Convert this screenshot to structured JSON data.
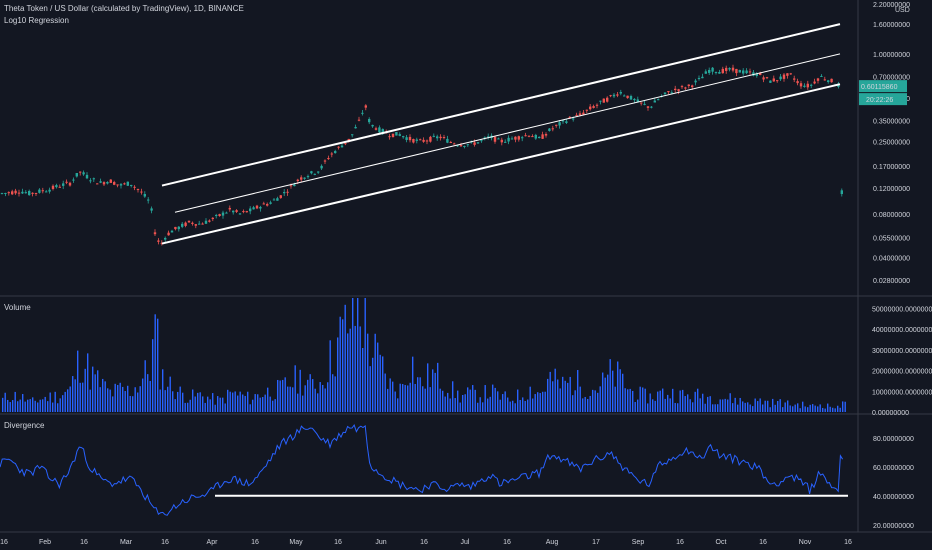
{
  "chart_data": [
    {
      "type": "candlestick",
      "title": "Theta Token / US Dollar (calculated by TradingView), 1D, BINANCE",
      "indicator_label": "Log10 Regression",
      "y_scale": "log",
      "ylim": [
        0.024,
        2.2
      ],
      "y_unit": "USD",
      "y_ticks": [
        "2.20000000",
        "1.60000000",
        "1.00000000",
        "0.70000000",
        "0.60115860",
        "0.50000000",
        "0.35000000",
        "0.25000000",
        "0.17000000",
        "0.12000000",
        "0.08000000",
        "0.05500000",
        "0.04000000",
        "0.02800000"
      ],
      "last_price": "0.60115860",
      "countdown": "20:22:26",
      "price_path": [
        [
          0,
          0.11
        ],
        [
          10,
          0.112
        ],
        [
          20,
          0.115
        ],
        [
          30,
          0.11
        ],
        [
          40,
          0.114
        ],
        [
          50,
          0.118
        ],
        [
          60,
          0.125
        ],
        [
          70,
          0.13
        ],
        [
          80,
          0.155
        ],
        [
          90,
          0.14
        ],
        [
          100,
          0.13
        ],
        [
          110,
          0.135
        ],
        [
          120,
          0.125
        ],
        [
          130,
          0.13
        ],
        [
          140,
          0.115
        ],
        [
          150,
          0.095
        ],
        [
          155,
          0.06
        ],
        [
          160,
          0.048
        ],
        [
          165,
          0.055
        ],
        [
          170,
          0.06
        ],
        [
          180,
          0.065
        ],
        [
          190,
          0.07
        ],
        [
          200,
          0.068
        ],
        [
          210,
          0.072
        ],
        [
          220,
          0.078
        ],
        [
          230,
          0.085
        ],
        [
          240,
          0.08
        ],
        [
          250,
          0.084
        ],
        [
          260,
          0.09
        ],
        [
          270,
          0.095
        ],
        [
          280,
          0.105
        ],
        [
          290,
          0.12
        ],
        [
          300,
          0.14
        ],
        [
          310,
          0.15
        ],
        [
          320,
          0.16
        ],
        [
          330,
          0.2
        ],
        [
          340,
          0.23
        ],
        [
          350,
          0.26
        ],
        [
          360,
          0.35
        ],
        [
          365,
          0.45
        ],
        [
          370,
          0.33
        ],
        [
          380,
          0.3
        ],
        [
          390,
          0.28
        ],
        [
          400,
          0.28
        ],
        [
          410,
          0.26
        ],
        [
          420,
          0.25
        ],
        [
          430,
          0.26
        ],
        [
          440,
          0.27
        ],
        [
          450,
          0.25
        ],
        [
          460,
          0.24
        ],
        [
          470,
          0.24
        ],
        [
          480,
          0.25
        ],
        [
          490,
          0.27
        ],
        [
          500,
          0.25
        ],
        [
          510,
          0.26
        ],
        [
          520,
          0.27
        ],
        [
          530,
          0.28
        ],
        [
          540,
          0.26
        ],
        [
          550,
          0.3
        ],
        [
          560,
          0.33
        ],
        [
          570,
          0.36
        ],
        [
          580,
          0.38
        ],
        [
          590,
          0.42
        ],
        [
          600,
          0.46
        ],
        [
          610,
          0.5
        ],
        [
          620,
          0.55
        ],
        [
          630,
          0.5
        ],
        [
          640,
          0.46
        ],
        [
          650,
          0.43
        ],
        [
          660,
          0.5
        ],
        [
          670,
          0.55
        ],
        [
          680,
          0.58
        ],
        [
          690,
          0.6
        ],
        [
          700,
          0.67
        ],
        [
          710,
          0.78
        ],
        [
          720,
          0.76
        ],
        [
          730,
          0.78
        ],
        [
          740,
          0.76
        ],
        [
          750,
          0.74
        ],
        [
          760,
          0.72
        ],
        [
          770,
          0.65
        ],
        [
          780,
          0.68
        ],
        [
          790,
          0.72
        ],
        [
          800,
          0.62
        ],
        [
          810,
          0.6
        ],
        [
          820,
          0.7
        ],
        [
          830,
          0.66
        ],
        [
          840,
          0.6
        ]
      ],
      "channel_lines": [
        {
          "name": "upper",
          "from": [
            "Mar 16",
            0.125
          ],
          "to": [
            "Nov 16+",
            1.6
          ]
        },
        {
          "name": "mid",
          "from": [
            "Mar 16",
            0.082
          ],
          "to": [
            "Nov 16+",
            1.0
          ]
        },
        {
          "name": "lower",
          "from": [
            "Mar 16",
            0.05
          ],
          "to": [
            "Nov 16+",
            0.62
          ]
        }
      ]
    },
    {
      "type": "bar",
      "title": "Volume",
      "ylim": [
        0,
        55000000
      ],
      "y_ticks": [
        "50000000.00000000",
        "40000000.00000000",
        "30000000.00000000",
        "20000000.00000000",
        "10000000.00000000",
        "0.00000000"
      ],
      "volume_path": [
        [
          0,
          6
        ],
        [
          10,
          9
        ],
        [
          20,
          8
        ],
        [
          30,
          5
        ],
        [
          40,
          7
        ],
        [
          50,
          8
        ],
        [
          60,
          9
        ],
        [
          70,
          12
        ],
        [
          80,
          30
        ],
        [
          90,
          20
        ],
        [
          100,
          15
        ],
        [
          110,
          10
        ],
        [
          120,
          12
        ],
        [
          130,
          11
        ],
        [
          140,
          16
        ],
        [
          150,
          25
        ],
        [
          155,
          45
        ],
        [
          160,
          20
        ],
        [
          170,
          14
        ],
        [
          180,
          10
        ],
        [
          190,
          8
        ],
        [
          200,
          9
        ],
        [
          210,
          7
        ],
        [
          220,
          6
        ],
        [
          230,
          10
        ],
        [
          240,
          9
        ],
        [
          250,
          7
        ],
        [
          260,
          10
        ],
        [
          270,
          11
        ],
        [
          280,
          12
        ],
        [
          290,
          16
        ],
        [
          300,
          18
        ],
        [
          310,
          14
        ],
        [
          320,
          16
        ],
        [
          330,
          28
        ],
        [
          340,
          40
        ],
        [
          350,
          50
        ],
        [
          360,
          55
        ],
        [
          370,
          35
        ],
        [
          380,
          25
        ],
        [
          390,
          14
        ],
        [
          400,
          12
        ],
        [
          410,
          28
        ],
        [
          420,
          14
        ],
        [
          430,
          20
        ],
        [
          440,
          18
        ],
        [
          450,
          12
        ],
        [
          460,
          8
        ],
        [
          470,
          10
        ],
        [
          480,
          9
        ],
        [
          490,
          11
        ],
        [
          500,
          8
        ],
        [
          510,
          7
        ],
        [
          520,
          9
        ],
        [
          530,
          12
        ],
        [
          540,
          10
        ],
        [
          550,
          18
        ],
        [
          560,
          14
        ],
        [
          570,
          16
        ],
        [
          580,
          15
        ],
        [
          590,
          12
        ],
        [
          600,
          14
        ],
        [
          610,
          20
        ],
        [
          620,
          18
        ],
        [
          630,
          11
        ],
        [
          640,
          9
        ],
        [
          650,
          8
        ],
        [
          660,
          10
        ],
        [
          670,
          10
        ],
        [
          680,
          9
        ],
        [
          690,
          8
        ],
        [
          700,
          9
        ],
        [
          710,
          8
        ],
        [
          720,
          8
        ],
        [
          730,
          7
        ],
        [
          740,
          6
        ],
        [
          750,
          5
        ],
        [
          760,
          6
        ],
        [
          770,
          5
        ],
        [
          780,
          5
        ],
        [
          790,
          4
        ],
        [
          800,
          4
        ],
        [
          810,
          3
        ],
        [
          820,
          4
        ],
        [
          830,
          3
        ],
        [
          840,
          2
        ]
      ]
    },
    {
      "type": "line",
      "title": "Divergence",
      "ylim": [
        15,
        95
      ],
      "y_ticks": [
        "80.00000000",
        "60.00000000",
        "40.00000000",
        "20.00000000"
      ],
      "series_path": [
        [
          0,
          62
        ],
        [
          10,
          65
        ],
        [
          20,
          58
        ],
        [
          30,
          55
        ],
        [
          40,
          60
        ],
        [
          50,
          52
        ],
        [
          60,
          48
        ],
        [
          70,
          58
        ],
        [
          80,
          75
        ],
        [
          90,
          60
        ],
        [
          100,
          52
        ],
        [
          110,
          48
        ],
        [
          120,
          50
        ],
        [
          130,
          52
        ],
        [
          140,
          45
        ],
        [
          150,
          35
        ],
        [
          155,
          30
        ],
        [
          160,
          26
        ],
        [
          170,
          30
        ],
        [
          180,
          35
        ],
        [
          190,
          38
        ],
        [
          200,
          40
        ],
        [
          210,
          42
        ],
        [
          220,
          48
        ],
        [
          230,
          52
        ],
        [
          240,
          50
        ],
        [
          250,
          48
        ],
        [
          260,
          55
        ],
        [
          270,
          65
        ],
        [
          280,
          75
        ],
        [
          290,
          80
        ],
        [
          300,
          85
        ],
        [
          310,
          88
        ],
        [
          320,
          80
        ],
        [
          330,
          76
        ],
        [
          340,
          82
        ],
        [
          350,
          88
        ],
        [
          360,
          86
        ],
        [
          365,
          90
        ],
        [
          370,
          62
        ],
        [
          380,
          56
        ],
        [
          390,
          52
        ],
        [
          400,
          48
        ],
        [
          410,
          46
        ],
        [
          420,
          44
        ],
        [
          430,
          48
        ],
        [
          440,
          46
        ],
        [
          450,
          45
        ],
        [
          460,
          48
        ],
        [
          470,
          46
        ],
        [
          480,
          50
        ],
        [
          490,
          55
        ],
        [
          500,
          48
        ],
        [
          510,
          50
        ],
        [
          520,
          52
        ],
        [
          530,
          54
        ],
        [
          540,
          56
        ],
        [
          550,
          68
        ],
        [
          560,
          66
        ],
        [
          570,
          62
        ],
        [
          580,
          58
        ],
        [
          590,
          63
        ],
        [
          600,
          66
        ],
        [
          610,
          70
        ],
        [
          620,
          62
        ],
        [
          630,
          55
        ],
        [
          640,
          50
        ],
        [
          650,
          48
        ],
        [
          660,
          62
        ],
        [
          670,
          65
        ],
        [
          680,
          70
        ],
        [
          690,
          72
        ],
        [
          700,
          65
        ],
        [
          710,
          74
        ],
        [
          720,
          68
        ],
        [
          730,
          66
        ],
        [
          740,
          64
        ],
        [
          750,
          62
        ],
        [
          760,
          58
        ],
        [
          770,
          48
        ],
        [
          780,
          50
        ],
        [
          790,
          54
        ],
        [
          800,
          50
        ],
        [
          810,
          44
        ],
        [
          820,
          56
        ],
        [
          830,
          48
        ],
        [
          840,
          44
        ]
      ],
      "support_line": {
        "value": 40,
        "from_x": 215,
        "to_x": 848
      }
    }
  ],
  "x_axis_labels": [
    "16",
    "Feb",
    "16",
    "Mar",
    "16",
    "Apr",
    "16",
    "May",
    "16",
    "Jun",
    "16",
    "Jul",
    "16",
    "Aug",
    "17",
    "Sep",
    "16",
    "Oct",
    "16",
    "Nov",
    "16"
  ]
}
